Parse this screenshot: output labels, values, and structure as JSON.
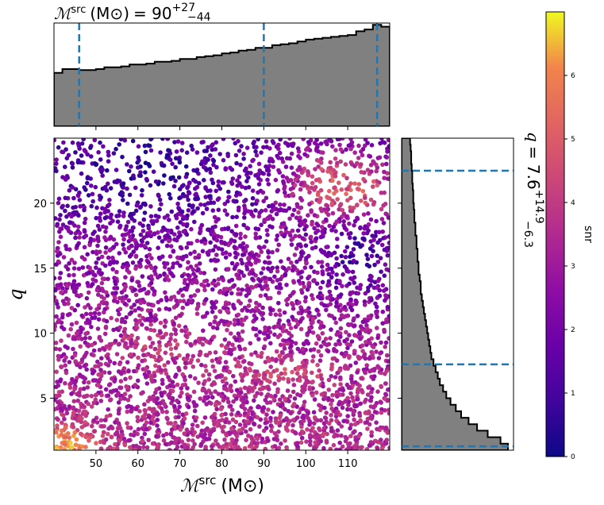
{
  "chart_data": [
    {
      "type": "scatter",
      "name": "main-scatter",
      "xlabel_symbol": "ℳ",
      "xlabel_sup": "src",
      "xlabel_unit": "(M⊙)",
      "ylabel": "q",
      "xlim": [
        40,
        120
      ],
      "ylim": [
        1,
        25
      ],
      "xticks": [
        50,
        60,
        70,
        80,
        90,
        100,
        110
      ],
      "yticks": [
        5,
        10,
        15,
        20
      ],
      "colormap": "plasma",
      "point_density_regions": [
        {
          "region": "bright-upper-right",
          "x": [
            95,
            120
          ],
          "y": [
            18,
            25
          ],
          "snr": [
            4.5,
            6.5
          ]
        },
        {
          "region": "mid-band",
          "x": [
            55,
            105
          ],
          "y": [
            5,
            10
          ],
          "snr": [
            3.5,
            5
          ]
        },
        {
          "region": "low-left-corner",
          "x": [
            40,
            55
          ],
          "y": [
            1,
            3
          ],
          "snr": [
            5,
            6.5
          ]
        }
      ]
    },
    {
      "type": "histogram",
      "name": "chirp-mass-marginal",
      "title_symbol": "ℳ",
      "title_sup": "src",
      "title_unit": "(M⊙)",
      "title_value": "= 90",
      "title_plus": "+27",
      "title_minus": "−44",
      "x_edges_start": 40,
      "x_edges_step": 2,
      "values": [
        0.58,
        0.62,
        0.62,
        0.61,
        0.61,
        0.62,
        0.64,
        0.64,
        0.65,
        0.67,
        0.67,
        0.68,
        0.7,
        0.7,
        0.71,
        0.73,
        0.73,
        0.75,
        0.76,
        0.77,
        0.79,
        0.8,
        0.82,
        0.83,
        0.85,
        0.85,
        0.88,
        0.89,
        0.9,
        0.92,
        0.94,
        0.95,
        0.96,
        0.97,
        0.98,
        0.99,
        1.03,
        1.05,
        1.1,
        1.08
      ],
      "quantiles": [
        46,
        90,
        117
      ]
    },
    {
      "type": "histogram",
      "name": "mass-ratio-marginal",
      "orientation": "horizontal",
      "title_symbol": "q",
      "title_value": "= 7.6",
      "title_plus": "+14.9",
      "title_minus": "−6.3",
      "y_edges_start": 1,
      "y_edges_step": 0.5,
      "values": [
        1.0,
        0.93,
        0.81,
        0.71,
        0.63,
        0.56,
        0.51,
        0.46,
        0.42,
        0.39,
        0.36,
        0.34,
        0.32,
        0.3,
        0.28,
        0.27,
        0.26,
        0.25,
        0.24,
        0.23,
        0.22,
        0.21,
        0.2,
        0.19,
        0.18,
        0.18,
        0.17,
        0.16,
        0.16,
        0.15,
        0.15,
        0.14,
        0.14,
        0.13,
        0.13,
        0.12,
        0.12,
        0.115,
        0.11,
        0.11,
        0.105,
        0.1,
        0.1,
        0.095,
        0.09,
        0.09,
        0.085,
        0.08
      ],
      "quantiles": [
        1.3,
        7.6,
        22.5
      ]
    },
    {
      "type": "colorbar",
      "name": "snr-colorbar",
      "label": "snr",
      "range": [
        0,
        7
      ],
      "ticks": [
        0,
        1,
        2,
        3,
        4,
        5,
        6
      ],
      "colormap": "plasma"
    }
  ],
  "colors": {
    "hist_fill": "#808080",
    "hist_edge": "#000000",
    "quantile_line": "#1f77b4"
  }
}
